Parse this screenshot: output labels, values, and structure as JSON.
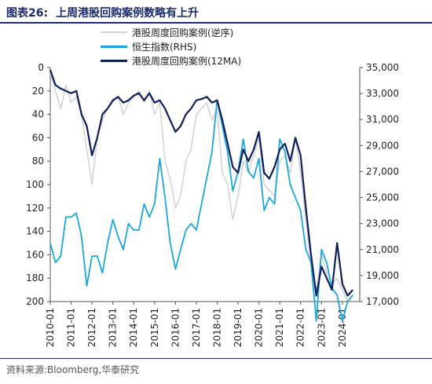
{
  "title": {
    "number": "图表26:",
    "text": "上周港股回购案例数略有上升"
  },
  "source": "资料来源:Bloomberg,华泰研究",
  "colors": {
    "weekly": "#cfcfcf",
    "hsi": "#1aa7de",
    "ma": "#0f1e5c",
    "title": "#1a2a6c"
  },
  "chart_data": {
    "type": "line",
    "legend_placement": "top",
    "grid": false,
    "series": [
      {
        "name": "港股周度回购案例(逆序)",
        "axis": "left",
        "color": "#cfcfcf",
        "x": [
          "2010-01",
          "2010-04",
          "2010-07",
          "2010-10",
          "2011-01",
          "2011-04",
          "2011-07",
          "2011-10",
          "2012-01",
          "2012-04",
          "2012-07",
          "2012-10",
          "2013-01",
          "2013-04",
          "2013-07",
          "2013-10",
          "2014-01",
          "2014-04",
          "2014-07",
          "2014-10",
          "2015-01",
          "2015-04",
          "2015-07",
          "2015-10",
          "2016-01",
          "2016-04",
          "2016-07",
          "2016-10",
          "2017-01",
          "2017-04",
          "2017-07",
          "2017-10",
          "2018-01",
          "2018-04",
          "2018-07",
          "2018-10",
          "2019-01",
          "2019-04",
          "2019-07",
          "2019-10",
          "2020-01",
          "2020-04",
          "2020-07",
          "2020-10",
          "2021-01",
          "2021-04",
          "2021-07",
          "2021-10",
          "2022-01",
          "2022-04",
          "2022-07",
          "2022-10",
          "2023-01",
          "2023-04",
          "2023-07",
          "2023-10",
          "2024-01",
          "2024-04",
          "2024-07"
        ],
        "values": [
          5,
          20,
          35,
          15,
          30,
          25,
          40,
          70,
          100,
          60,
          45,
          35,
          30,
          25,
          40,
          30,
          25,
          20,
          30,
          20,
          40,
          30,
          80,
          95,
          120,
          110,
          80,
          70,
          40,
          35,
          30,
          45,
          35,
          90,
          100,
          130,
          110,
          80,
          90,
          75,
          60,
          100,
          105,
          110,
          80,
          75,
          90,
          60,
          90,
          130,
          170,
          190,
          160,
          175,
          185,
          180,
          190,
          200,
          195
        ]
      },
      {
        "name": "恒生指数(RHS)",
        "axis": "right",
        "color": "#1aa7de",
        "x": [
          "2010-01",
          "2010-04",
          "2010-07",
          "2010-10",
          "2011-01",
          "2011-04",
          "2011-07",
          "2011-10",
          "2012-01",
          "2012-04",
          "2012-07",
          "2012-10",
          "2013-01",
          "2013-04",
          "2013-07",
          "2013-10",
          "2014-01",
          "2014-04",
          "2014-07",
          "2014-10",
          "2015-01",
          "2015-04",
          "2015-07",
          "2015-10",
          "2016-01",
          "2016-04",
          "2016-07",
          "2016-10",
          "2017-01",
          "2017-04",
          "2017-07",
          "2017-10",
          "2018-01",
          "2018-04",
          "2018-07",
          "2018-10",
          "2019-01",
          "2019-04",
          "2019-07",
          "2019-10",
          "2020-01",
          "2020-04",
          "2020-07",
          "2020-10",
          "2021-01",
          "2021-04",
          "2021-07",
          "2021-10",
          "2022-01",
          "2022-04",
          "2022-07",
          "2022-10",
          "2023-01",
          "2023-04",
          "2023-07",
          "2023-10",
          "2024-01",
          "2024-04",
          "2024-07"
        ],
        "values": [
          21500,
          20000,
          20500,
          23500,
          23500,
          23800,
          22000,
          18200,
          20500,
          20500,
          19200,
          21500,
          23300,
          22000,
          21000,
          23000,
          22500,
          22500,
          24500,
          23500,
          24500,
          28000,
          25000,
          21500,
          19500,
          21000,
          22500,
          23000,
          22500,
          24500,
          26500,
          28500,
          32500,
          30500,
          28500,
          25500,
          27000,
          29500,
          27000,
          26500,
          28000,
          24000,
          25000,
          24500,
          29500,
          28500,
          26000,
          25000,
          24000,
          21000,
          20000,
          15500,
          21000,
          20000,
          18000,
          17500,
          15500,
          17000,
          17500
        ]
      },
      {
        "name": "港股周度回购案例(12MA)",
        "axis": "left",
        "color": "#0f1e5c",
        "x": [
          "2010-01",
          "2010-04",
          "2010-07",
          "2010-10",
          "2011-01",
          "2011-04",
          "2011-07",
          "2011-10",
          "2012-01",
          "2012-04",
          "2012-07",
          "2012-10",
          "2013-01",
          "2013-04",
          "2013-07",
          "2013-10",
          "2014-01",
          "2014-04",
          "2014-07",
          "2014-10",
          "2015-01",
          "2015-04",
          "2015-07",
          "2015-10",
          "2016-01",
          "2016-04",
          "2016-07",
          "2016-10",
          "2017-01",
          "2017-04",
          "2017-07",
          "2017-10",
          "2018-01",
          "2018-04",
          "2018-07",
          "2018-10",
          "2019-01",
          "2019-04",
          "2019-07",
          "2019-10",
          "2020-01",
          "2020-04",
          "2020-07",
          "2020-10",
          "2021-01",
          "2021-04",
          "2021-07",
          "2021-10",
          "2022-01",
          "2022-04",
          "2022-07",
          "2022-10",
          "2023-01",
          "2023-04",
          "2023-07",
          "2023-10",
          "2024-01",
          "2024-04",
          "2024-07"
        ],
        "values": [
          2,
          15,
          18,
          20,
          22,
          20,
          40,
          50,
          75,
          60,
          40,
          35,
          28,
          25,
          30,
          28,
          24,
          22,
          28,
          22,
          30,
          28,
          35,
          45,
          55,
          50,
          40,
          35,
          28,
          27,
          25,
          30,
          28,
          45,
          65,
          85,
          90,
          70,
          80,
          70,
          55,
          90,
          95,
          85,
          70,
          65,
          80,
          60,
          75,
          120,
          160,
          195,
          170,
          180,
          190,
          150,
          185,
          195,
          190
        ]
      }
    ],
    "left_axis": {
      "min": 0,
      "max": 200,
      "reversed": true,
      "ticks": [
        "0",
        "20",
        "40",
        "60",
        "80",
        "100",
        "120",
        "140",
        "160",
        "180",
        "200"
      ]
    },
    "right_axis": {
      "min": 17000,
      "max": 35000,
      "ticks": [
        "35,000",
        "33,000",
        "31,000",
        "29,000",
        "27,000",
        "25,000",
        "23,000",
        "21,000",
        "19,000",
        "17,000"
      ]
    },
    "x_axis": {
      "ticks": [
        "2010-01",
        "2011-01",
        "2012-01",
        "2013-01",
        "2014-01",
        "2015-01",
        "2016-01",
        "2017-01",
        "2018-01",
        "2019-01",
        "2020-01",
        "2021-01",
        "2022-01",
        "2023-01",
        "2024-01"
      ]
    }
  }
}
